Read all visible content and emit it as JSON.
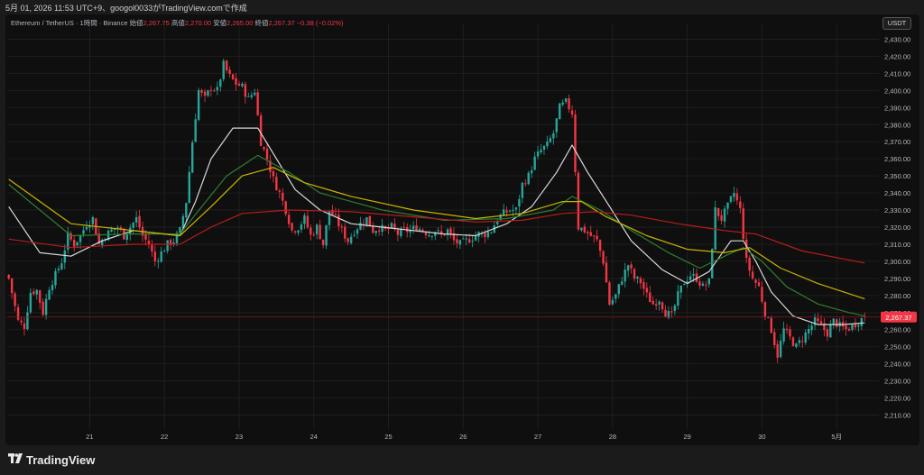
{
  "header": {
    "caption": "5月 01, 2026 11:53 UTC+9、googol0033がTradingView.comで作成"
  },
  "legend": {
    "symbol": "Ethereum / TetherUS · 1時間 · Binance",
    "open_label": "始値",
    "open": "2,267.75",
    "high_label": "高値",
    "high": "2,270.00",
    "low_label": "安値",
    "low": "2,265.00",
    "close_label": "終値",
    "close": "2,267.37",
    "change": "−0.38 (−0.02%)"
  },
  "currency_button": "USDT",
  "brand": {
    "name": "TradingView",
    "icon": "tradingview-logo-icon"
  },
  "colors": {
    "up": "#26a69a",
    "down": "#f23645",
    "ma_fast": "#d9d9d9",
    "ma_green": "#2e7d32",
    "ma_yellow": "#c8b400",
    "ma_red": "#b71c1c",
    "last_price_line": "#8b1a1a"
  },
  "chart_data": {
    "type": "candlestick",
    "symbol": "ETHUSDT",
    "interval": "1時間",
    "ylim": [
      2205,
      2435
    ],
    "y_ticks": [
      "2,430.00",
      "2,420.00",
      "2,410.00",
      "2,400.00",
      "2,390.00",
      "2,380.00",
      "2,370.00",
      "2,360.00",
      "2,350.00",
      "2,340.00",
      "2,330.00",
      "2,320.00",
      "2,310.00",
      "2,300.00",
      "2,290.00",
      "2,280.00",
      "2,270.00",
      "2,260.00",
      "2,250.00",
      "2,240.00",
      "2,230.00",
      "2,220.00",
      "2,210.00"
    ],
    "x_ticks": [
      {
        "label": "21",
        "t": 26
      },
      {
        "label": "22",
        "t": 50
      },
      {
        "label": "23",
        "t": 74
      },
      {
        "label": "24",
        "t": 98
      },
      {
        "label": "25",
        "t": 122
      },
      {
        "label": "26",
        "t": 146
      },
      {
        "label": "27",
        "t": 170
      },
      {
        "label": "28",
        "t": 194
      },
      {
        "label": "29",
        "t": 218
      },
      {
        "label": "30",
        "t": 242
      },
      {
        "label": "5月",
        "t": 266
      }
    ],
    "last_price": 2267.37,
    "last_price_label": "2,267.37",
    "close_path": [
      [
        0,
        2290
      ],
      [
        3,
        2265
      ],
      [
        5,
        2262
      ],
      [
        7,
        2282
      ],
      [
        9,
        2283
      ],
      [
        11,
        2270
      ],
      [
        13,
        2285
      ],
      [
        15,
        2292
      ],
      [
        17,
        2300
      ],
      [
        19,
        2315
      ],
      [
        21,
        2310
      ],
      [
        23,
        2315
      ],
      [
        25,
        2322
      ],
      [
        27,
        2325
      ],
      [
        29,
        2310
      ],
      [
        31,
        2315
      ],
      [
        33,
        2318
      ],
      [
        35,
        2320
      ],
      [
        37,
        2315
      ],
      [
        39,
        2320
      ],
      [
        41,
        2325
      ],
      [
        43,
        2315
      ],
      [
        45,
        2310
      ],
      [
        47,
        2300
      ],
      [
        49,
        2305
      ],
      [
        51,
        2310
      ],
      [
        53,
        2312
      ],
      [
        55,
        2318
      ],
      [
        57,
        2335
      ],
      [
        59,
        2370
      ],
      [
        61,
        2400
      ],
      [
        63,
        2395
      ],
      [
        65,
        2402
      ],
      [
        67,
        2400
      ],
      [
        69,
        2415
      ],
      [
        71,
        2408
      ],
      [
        73,
        2404
      ],
      [
        75,
        2402
      ],
      [
        77,
        2395
      ],
      [
        79,
        2400
      ],
      [
        81,
        2370
      ],
      [
        83,
        2360
      ],
      [
        85,
        2348
      ],
      [
        87,
        2340
      ],
      [
        89,
        2330
      ],
      [
        91,
        2318
      ],
      [
        93,
        2320
      ],
      [
        95,
        2325
      ],
      [
        97,
        2315
      ],
      [
        99,
        2320
      ],
      [
        101,
        2310
      ],
      [
        103,
        2330
      ],
      [
        105,
        2325
      ],
      [
        107,
        2318
      ],
      [
        109,
        2312
      ],
      [
        111,
        2318
      ],
      [
        113,
        2322
      ],
      [
        115,
        2325
      ],
      [
        117,
        2318
      ],
      [
        119,
        2320
      ],
      [
        121,
        2318
      ],
      [
        123,
        2320
      ],
      [
        125,
        2316
      ],
      [
        127,
        2318
      ],
      [
        129,
        2318
      ],
      [
        131,
        2320
      ],
      [
        133,
        2318
      ],
      [
        135,
        2316
      ],
      [
        137,
        2318
      ],
      [
        139,
        2315
      ],
      [
        141,
        2318
      ],
      [
        143,
        2312
      ],
      [
        145,
        2310
      ],
      [
        147,
        2312
      ],
      [
        149,
        2314
      ],
      [
        151,
        2316
      ],
      [
        153,
        2316
      ],
      [
        155,
        2318
      ],
      [
        157,
        2325
      ],
      [
        159,
        2328
      ],
      [
        161,
        2330
      ],
      [
        163,
        2330
      ],
      [
        165,
        2345
      ],
      [
        167,
        2350
      ],
      [
        169,
        2360
      ],
      [
        171,
        2365
      ],
      [
        173,
        2368
      ],
      [
        175,
        2375
      ],
      [
        177,
        2390
      ],
      [
        179,
        2393
      ],
      [
        181,
        2387
      ],
      [
        183,
        2320
      ],
      [
        185,
        2318
      ],
      [
        187,
        2315
      ],
      [
        189,
        2312
      ],
      [
        191,
        2300
      ],
      [
        193,
        2275
      ],
      [
        195,
        2280
      ],
      [
        197,
        2290
      ],
      [
        199,
        2298
      ],
      [
        201,
        2290
      ],
      [
        203,
        2288
      ],
      [
        205,
        2280
      ],
      [
        207,
        2275
      ],
      [
        209,
        2278
      ],
      [
        211,
        2270
      ],
      [
        213,
        2268
      ],
      [
        215,
        2280
      ],
      [
        217,
        2288
      ],
      [
        219,
        2292
      ],
      [
        221,
        2290
      ],
      [
        223,
        2285
      ],
      [
        225,
        2288
      ],
      [
        227,
        2330
      ],
      [
        229,
        2325
      ],
      [
        231,
        2332
      ],
      [
        233,
        2340
      ],
      [
        235,
        2330
      ],
      [
        237,
        2300
      ],
      [
        239,
        2290
      ],
      [
        241,
        2285
      ],
      [
        243,
        2270
      ],
      [
        245,
        2260
      ],
      [
        247,
        2245
      ],
      [
        249,
        2260
      ],
      [
        251,
        2255
      ],
      [
        253,
        2250
      ],
      [
        255,
        2255
      ],
      [
        257,
        2260
      ],
      [
        259,
        2265
      ],
      [
        261,
        2262
      ],
      [
        263,
        2258
      ],
      [
        265,
        2265
      ],
      [
        267,
        2262
      ],
      [
        269,
        2260
      ],
      [
        271,
        2262
      ],
      [
        273,
        2265
      ],
      [
        275,
        2267.37
      ]
    ],
    "moving_averages": [
      {
        "color": "#d9d9d9",
        "points": [
          [
            0,
            2332
          ],
          [
            10,
            2305
          ],
          [
            20,
            2303
          ],
          [
            30,
            2312
          ],
          [
            40,
            2318
          ],
          [
            50,
            2316
          ],
          [
            55,
            2315
          ],
          [
            60,
            2335
          ],
          [
            65,
            2360
          ],
          [
            72,
            2378
          ],
          [
            80,
            2378
          ],
          [
            86,
            2360
          ],
          [
            92,
            2342
          ],
          [
            100,
            2330
          ],
          [
            110,
            2322
          ],
          [
            120,
            2320
          ],
          [
            130,
            2318
          ],
          [
            140,
            2316
          ],
          [
            150,
            2315
          ],
          [
            160,
            2322
          ],
          [
            168,
            2332
          ],
          [
            176,
            2352
          ],
          [
            181,
            2368
          ],
          [
            186,
            2352
          ],
          [
            192,
            2335
          ],
          [
            200,
            2312
          ],
          [
            210,
            2295
          ],
          [
            218,
            2287
          ],
          [
            225,
            2294
          ],
          [
            232,
            2312
          ],
          [
            236,
            2312
          ],
          [
            240,
            2300
          ],
          [
            245,
            2282
          ],
          [
            252,
            2268
          ],
          [
            260,
            2263
          ],
          [
            268,
            2263
          ],
          [
            275,
            2264
          ]
        ]
      },
      {
        "color": "#2e7d32",
        "points": [
          [
            0,
            2345
          ],
          [
            20,
            2315
          ],
          [
            40,
            2316
          ],
          [
            55,
            2316
          ],
          [
            62,
            2332
          ],
          [
            70,
            2350
          ],
          [
            80,
            2362
          ],
          [
            90,
            2352
          ],
          [
            100,
            2340
          ],
          [
            120,
            2330
          ],
          [
            140,
            2324
          ],
          [
            160,
            2325
          ],
          [
            175,
            2330
          ],
          [
            181,
            2338
          ],
          [
            190,
            2330
          ],
          [
            200,
            2318
          ],
          [
            212,
            2305
          ],
          [
            222,
            2296
          ],
          [
            230,
            2303
          ],
          [
            236,
            2308
          ],
          [
            242,
            2300
          ],
          [
            250,
            2285
          ],
          [
            260,
            2275
          ],
          [
            270,
            2270
          ],
          [
            275,
            2268
          ]
        ]
      },
      {
        "color": "#c8b400",
        "points": [
          [
            0,
            2348
          ],
          [
            20,
            2322
          ],
          [
            40,
            2318
          ],
          [
            55,
            2315
          ],
          [
            65,
            2332
          ],
          [
            75,
            2350
          ],
          [
            85,
            2355
          ],
          [
            95,
            2346
          ],
          [
            110,
            2338
          ],
          [
            130,
            2330
          ],
          [
            150,
            2325
          ],
          [
            165,
            2328
          ],
          [
            178,
            2335
          ],
          [
            184,
            2335
          ],
          [
            192,
            2326
          ],
          [
            205,
            2315
          ],
          [
            218,
            2307
          ],
          [
            230,
            2305
          ],
          [
            238,
            2308
          ],
          [
            248,
            2296
          ],
          [
            260,
            2287
          ],
          [
            275,
            2278
          ]
        ]
      },
      {
        "color": "#b71c1c",
        "points": [
          [
            0,
            2313
          ],
          [
            20,
            2308
          ],
          [
            40,
            2310
          ],
          [
            55,
            2310
          ],
          [
            65,
            2320
          ],
          [
            75,
            2328
          ],
          [
            90,
            2330
          ],
          [
            110,
            2329
          ],
          [
            130,
            2326
          ],
          [
            150,
            2323
          ],
          [
            165,
            2324
          ],
          [
            178,
            2328
          ],
          [
            188,
            2329
          ],
          [
            200,
            2327
          ],
          [
            215,
            2322
          ],
          [
            230,
            2318
          ],
          [
            240,
            2316
          ],
          [
            255,
            2306
          ],
          [
            275,
            2299
          ]
        ]
      }
    ]
  }
}
